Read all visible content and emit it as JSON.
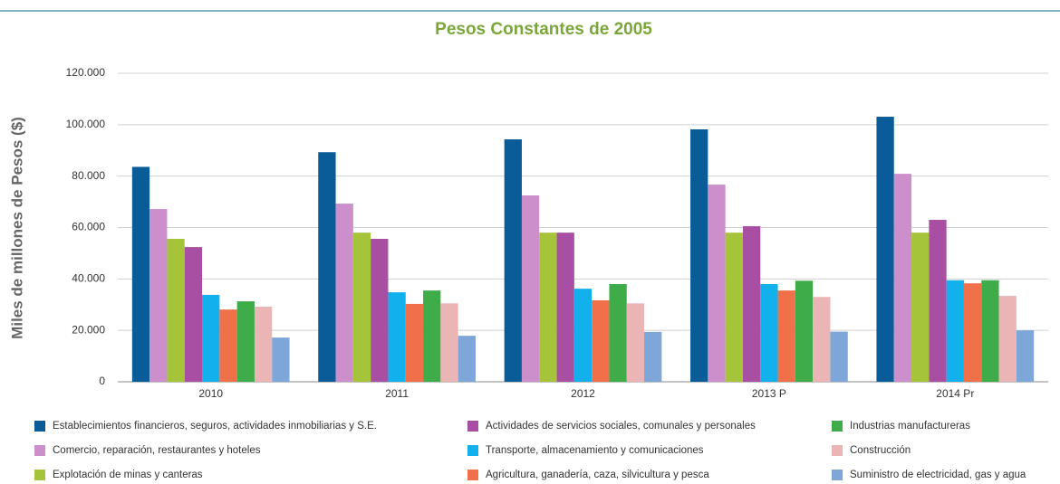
{
  "chart_data": {
    "type": "bar",
    "title": "Pesos Constantes de 2005",
    "y_label": "Miles de millones de  Pesos ($)",
    "categories": [
      "2010",
      "2011",
      "2012",
      "2013 P",
      "2014 Pr"
    ],
    "ylim": [
      0,
      120000
    ],
    "yticks": [
      0,
      {
        "value": 20000,
        "label": "20.000"
      },
      {
        "value": 40000,
        "label": "40.000"
      },
      {
        "value": 60000,
        "label": "60.000"
      },
      {
        "value": 80000,
        "label": "80.000"
      },
      {
        "value": 100000,
        "label": "100.000"
      },
      {
        "value": 120000,
        "label": "120.000"
      }
    ],
    "grid": true,
    "series": [
      {
        "name": "Establecimientos financieros, seguros, actividades inmobiliarias y S.E.",
        "color": "#0a5c99",
        "values": [
          83600,
          89300,
          94300,
          98200,
          103100
        ]
      },
      {
        "name": "Comercio, reparación, restaurantes y hoteles",
        "color": "#cc8fcc",
        "values": [
          67200,
          69300,
          72500,
          76700,
          80900
        ]
      },
      {
        "name": "Explotación de minas y canteras",
        "color": "#a6c43a",
        "values": [
          55600,
          58000,
          58000,
          58000,
          58000
        ]
      },
      {
        "name": "Actividades de servicios sociales, comunales y personales",
        "color": "#a84fa3",
        "values": [
          52400,
          55600,
          58000,
          60500,
          63000
        ]
      },
      {
        "name": "Transporte, almacenamiento y comunicaciones",
        "color": "#12b0ec",
        "values": [
          33800,
          34800,
          36200,
          38000,
          39500
        ]
      },
      {
        "name": "Agricultura, ganadería, caza, silvicultura y pesca",
        "color": "#f0704a",
        "values": [
          28100,
          30300,
          31700,
          35500,
          38300
        ]
      },
      {
        "name": "Industrias manufactureras",
        "color": "#3fac4a",
        "values": [
          31300,
          35500,
          38000,
          39300,
          39500
        ]
      },
      {
        "name": "Construcción",
        "color": "#ebb5b5",
        "values": [
          29200,
          30500,
          30500,
          33000,
          33400
        ]
      },
      {
        "name": "Suministro de electricidad, gas y agua",
        "color": "#7fa6d8",
        "values": [
          17200,
          17900,
          19400,
          19500,
          20000
        ]
      }
    ]
  }
}
